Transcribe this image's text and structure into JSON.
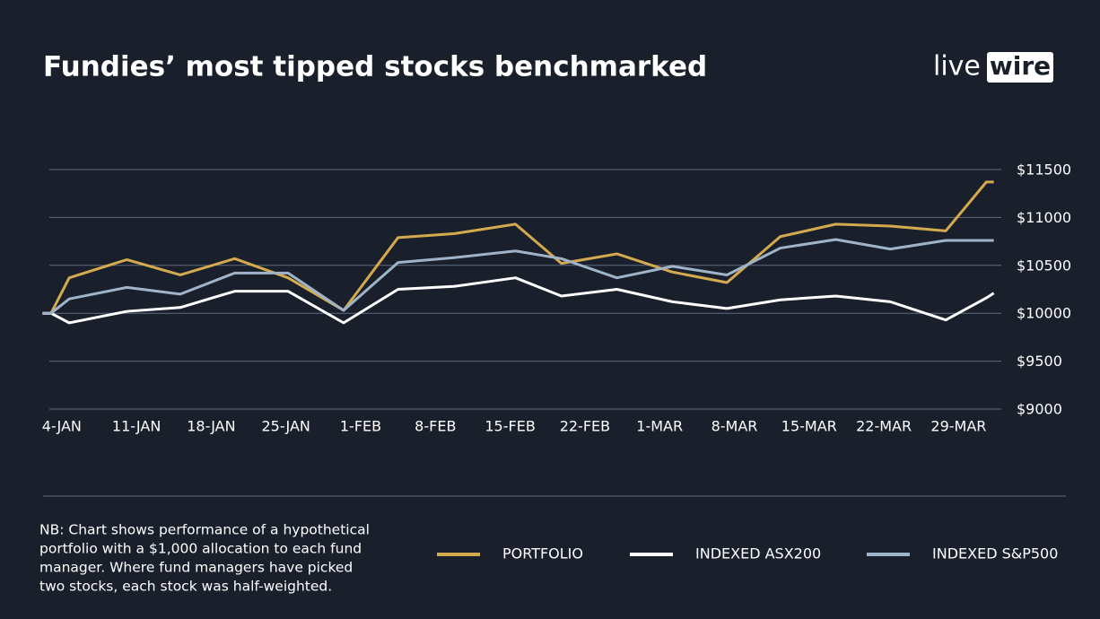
{
  "chart_data": {
    "type": "line",
    "title": "Fundies’ most tipped stocks benchmarked",
    "logo": {
      "left": "live",
      "right": "wire"
    },
    "note": [
      "NB: Chart shows performance of a hypothetical",
      "portfolio with a $1,000 allocation to each fund",
      "manager. Where fund managers have picked",
      "two stocks, each stock was half-weighted."
    ],
    "x": [
      -1.8,
      -1.0,
      0.7,
      6.1,
      11.1,
      16.2,
      21.2,
      26.4,
      31.5,
      36.7,
      42.5,
      46.8,
      52.0,
      57.2,
      62.3,
      67.3,
      72.5,
      77.6,
      82.8,
      86.6,
      87.3
    ],
    "xlim": [
      -2,
      88
    ],
    "xticks": [
      {
        "value": 0,
        "label": "4-JAN"
      },
      {
        "value": 7,
        "label": "11-JAN"
      },
      {
        "value": 14,
        "label": "18-JAN"
      },
      {
        "value": 21,
        "label": "25-JAN"
      },
      {
        "value": 28,
        "label": "1-FEB"
      },
      {
        "value": 35,
        "label": "8-FEB"
      },
      {
        "value": 42,
        "label": "15-FEB"
      },
      {
        "value": 49,
        "label": "22-FEB"
      },
      {
        "value": 56,
        "label": "1-MAR"
      },
      {
        "value": 63,
        "label": "8-MAR"
      },
      {
        "value": 70,
        "label": "15-MAR"
      },
      {
        "value": 77,
        "label": "22-MAR"
      },
      {
        "value": 84,
        "label": "29-MAR"
      }
    ],
    "ylim": [
      9000,
      11500
    ],
    "yticks": [
      {
        "value": 11500,
        "label": "$11500"
      },
      {
        "value": 11000,
        "label": "$11000"
      },
      {
        "value": 10500,
        "label": "$10500"
      },
      {
        "value": 10000,
        "label": "$10000"
      },
      {
        "value": 9500,
        "label": "$9500"
      },
      {
        "value": 9000,
        "label": "$9000"
      }
    ],
    "grid": true,
    "legend": "bottom-right",
    "series": [
      {
        "name": "PORTFOLIO",
        "color": "#d4aa4e",
        "values": [
          10000,
          10000,
          10370,
          10560,
          10400,
          10570,
          10370,
          10030,
          10790,
          10830,
          10930,
          10520,
          10620,
          10430,
          10320,
          10800,
          10930,
          10910,
          10860,
          11370,
          11370
        ]
      },
      {
        "name": "INDEXED ASX200",
        "color": "#ffffff",
        "values": [
          10000,
          10000,
          9900,
          10020,
          10060,
          10230,
          10230,
          9900,
          10250,
          10280,
          10370,
          10180,
          10250,
          10120,
          10050,
          10140,
          10180,
          10120,
          9930,
          10160,
          10210
        ]
      },
      {
        "name": "INDEXED S&P500",
        "color": "#9fb4c8",
        "values": [
          10000,
          10000,
          10150,
          10270,
          10200,
          10420,
          10420,
          10030,
          10530,
          10580,
          10650,
          10570,
          10370,
          10490,
          10400,
          10680,
          10770,
          10670,
          10760,
          10760,
          10760
        ]
      }
    ]
  }
}
